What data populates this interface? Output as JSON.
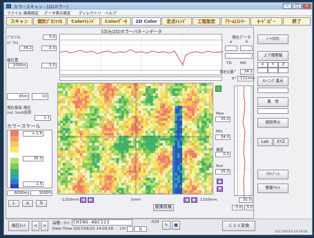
{
  "window": {
    "title": "カラースキャン - [2Dカラー]"
  },
  "menu": [
    "ファイル",
    "画面設定",
    "データ表示設定",
    "ディレクトリ",
    "ヘルプ"
  ],
  "tabs": [
    "スキャン",
    "個別ﾌﾟﾛﾌｧｲﾙ",
    "Colorﾄﾚﾝﾄﾞ",
    "Colorﾃﾞｰﾀ",
    "2D Color",
    "定点ﾄﾚﾝﾄﾞ",
    "工程設定",
    "ｱﾗｰﾑﾋｽﾄﾘｰ",
    "ﾎｰﾄﾞｺﾋﾟｰ",
    "終了"
  ],
  "panel_title": "3次元(2D)カラーパターンデータ",
  "top_left": {
    "label1": "ﾌﾟﾛﾌｧｲﾙ",
    "label2": "ｽﾍﾟｸﾄﾙ",
    "v1": "0.0",
    "v2": "34.2",
    "label3": "幅位置",
    "v3": "1000m",
    "v4": "-3.0"
  },
  "current_data": {
    "title": "現在データ",
    "col_a": "a",
    "col_b": "b",
    "td": "TD",
    "md": "MD",
    "measure_label": "測定位置",
    "l_label": "L*",
    "l_value": "34.2",
    "b_label": "b*",
    "b_value": "-111mm"
  },
  "left_panel": {
    "v_top": "65m",
    "v_top2": "10",
    "label_info": "現在巻長 現在",
    "label_info2": "(m) 1m/ⅱ倍率",
    "v_mid": "1.1",
    "scale_title": "カラースケール",
    "scale_top": "+ 1.5",
    "scale_mid": "35.0",
    "scale_low": "- 1.5",
    "bottom1": "6000m",
    "bottom2": "10000",
    "lab": [
      "L",
      "a",
      "b"
    ]
  },
  "heatmap": {
    "x_left": "-1150",
    "x_unit": "mm",
    "x_center": "0mm",
    "x_right": "1150",
    "x_right_unit": "mm",
    "section_label": "断面有無"
  },
  "stats": {
    "max_label": "Max",
    "max_value": "35.0",
    "min_label": "Min",
    "min_value": "34.0",
    "dev_label": "偏差",
    "dev_value": "0.2",
    "avg_label": "Ave",
    "avg_value": "35.0"
  },
  "trend": {
    "bottom_value": "35.0",
    "bottom_left": "-3.0",
    "bottom_right": "3.0"
  },
  "right_buttons": [
    "ｼｰﾄ切れ",
    "上下限警報",
    "ﾄﾚｰﾆﾝｸﾞ基点",
    "異　常",
    "個別停止",
    "Lab",
    "XYZ",
    "ｱｳﾄﾌﾟｯﾄ",
    "警報ﾘｾｯﾄ"
  ],
  "right_mini": [
    "X",
    "Y",
    "Z"
  ],
  "bottom": {
    "current_pos": "現在ﾛｯﾄ",
    "prev": "<",
    "next": ">",
    "product_label": "品種・ﾛｯﾄ",
    "product_value": "CHINO-ABC123",
    "lot_no": "-029",
    "date_label": "Date Time",
    "date_value": "2017/06/21 14:09:58",
    "ch_label": "CH",
    "csv": "ＣＳＶ変換",
    "status_time": "2017/06/19 18:59:06"
  },
  "colors": {
    "scale": [
      "#ffffff",
      "#f07a6c",
      "#f2a064",
      "#f6c85c",
      "#f2ea63",
      "#ffffff",
      "#b5e06b",
      "#7ecb5b",
      "#3fb16b",
      "#2aa7b0",
      "#2a7bd0",
      "#2a45b8"
    ]
  }
}
